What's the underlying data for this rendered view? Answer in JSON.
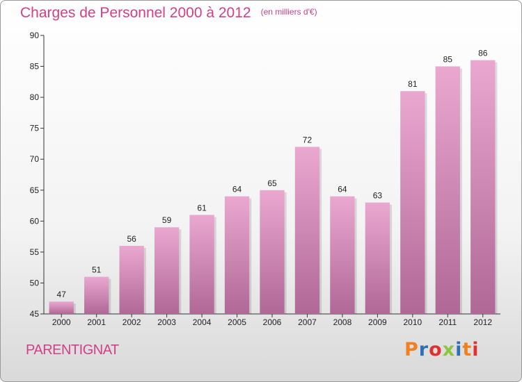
{
  "header": {
    "title": "Charges de Personnel 2000 à 2012",
    "unit": "(en milliers d'€)"
  },
  "footer": {
    "commune": "PARENTIGNAT",
    "logo": {
      "text": "Proxiti",
      "letters": [
        "P",
        "r",
        "o",
        "x",
        "i",
        "t",
        "i"
      ],
      "colors": [
        "#f08020",
        "#2f6fb5",
        "#e03030",
        "#8cc63f",
        "#2f6fb5",
        "#f08020",
        "#e03030"
      ]
    }
  },
  "chart_data": {
    "type": "bar",
    "title": "Charges de Personnel 2000 à 2012",
    "subtitle": "(en milliers d'€)",
    "categories": [
      "2000",
      "2001",
      "2002",
      "2003",
      "2004",
      "2005",
      "2006",
      "2007",
      "2008",
      "2009",
      "2010",
      "2011",
      "2012"
    ],
    "values": [
      47,
      51,
      56,
      59,
      61,
      64,
      65,
      72,
      64,
      63,
      81,
      85,
      86
    ],
    "ylim": [
      45,
      90
    ],
    "yticks": [
      45,
      50,
      55,
      60,
      65,
      70,
      75,
      80,
      85,
      90
    ],
    "grid": false,
    "bar_color": "#e0a0c8"
  }
}
